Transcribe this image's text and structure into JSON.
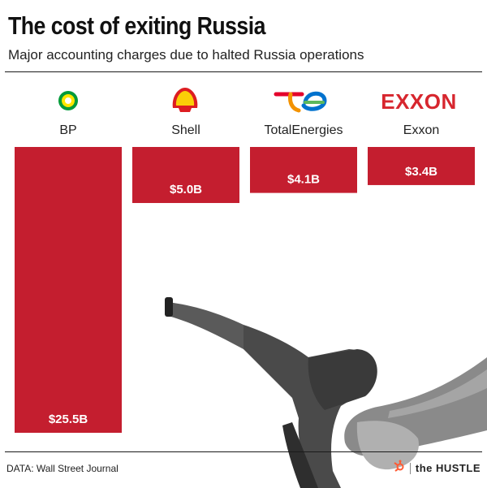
{
  "header": {
    "title": "The cost of exiting Russia",
    "subtitle": "Major accounting charges due to halted Russia operations"
  },
  "footer": {
    "source": "DATA: Wall Street Journal",
    "brand": "the HUSTLE"
  },
  "logos": [
    "bp-helios-logo",
    "shell-pecten-logo",
    "totalenergies-logo",
    "exxon-logo"
  ],
  "colors": {
    "bar": "#C41E2F",
    "text": "#1a1a1a"
  },
  "chart_data": {
    "type": "bar",
    "orientation": "vertical-hanging",
    "categories": [
      "BP",
      "Shell",
      "TotalEnergies",
      "Exxon"
    ],
    "values": [
      25.5,
      5.0,
      4.1,
      3.4
    ],
    "value_labels": [
      "$25.5B",
      "$5.0B",
      "$4.1B",
      "$3.4B"
    ],
    "unit": "billion USD",
    "title": "The cost of exiting Russia",
    "subtitle": "Major accounting charges due to halted Russia operations",
    "ylim": [
      0,
      25.5
    ],
    "grid": false,
    "legend": "none"
  }
}
